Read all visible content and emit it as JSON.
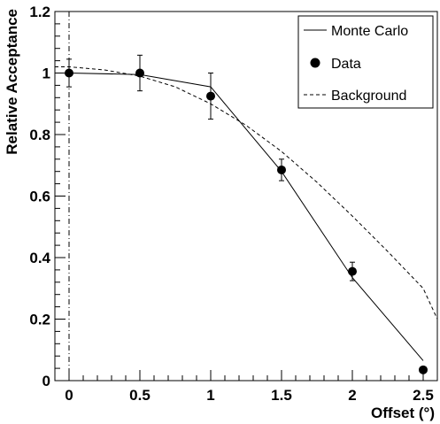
{
  "chart_data": {
    "type": "scatter",
    "title": "",
    "xlabel": "Offset (°)",
    "ylabel": "Relative Acceptance",
    "xlim": [
      -0.1,
      2.6
    ],
    "ylim": [
      0,
      1.2
    ],
    "x_ticks": [
      0,
      0.5,
      1,
      1.5,
      2,
      2.5
    ],
    "x_tick_labels": [
      "0",
      "0.5",
      "1",
      "1.5",
      "2",
      "2.5"
    ],
    "y_ticks": [
      0,
      0.2,
      0.4,
      0.6,
      0.8,
      1,
      1.2
    ],
    "y_tick_labels": [
      "0",
      "0.2",
      "0.4",
      "0.6",
      "0.8",
      "1",
      "1.2"
    ],
    "grid": false,
    "legend_position": "top-right",
    "series": [
      {
        "name": "Monte Carlo",
        "style": "solid-line",
        "x": [
          0,
          0.5,
          1,
          1.5,
          2,
          2.5
        ],
        "y": [
          1.0,
          0.995,
          0.955,
          0.68,
          0.335,
          0.065
        ]
      },
      {
        "name": "Data",
        "style": "points-with-error-bars",
        "x": [
          0,
          0.5,
          1,
          1.5,
          2,
          2.5
        ],
        "y": [
          1.0,
          1.0,
          0.925,
          0.685,
          0.355,
          0.035
        ],
        "yerr": [
          0.045,
          0.058,
          0.075,
          0.035,
          0.03,
          0.0
        ]
      },
      {
        "name": "Background",
        "style": "dashed-line",
        "x": [
          -0.1,
          0.0,
          0.25,
          0.5,
          0.75,
          1.0,
          1.25,
          1.5,
          1.75,
          2.0,
          2.25,
          2.5,
          2.6
        ],
        "y": [
          1.02,
          1.02,
          1.01,
          0.99,
          0.955,
          0.9,
          0.83,
          0.745,
          0.645,
          0.535,
          0.42,
          0.3,
          0.2
        ]
      }
    ],
    "vertical_reference_line": {
      "x": 0,
      "style": "dash-dot"
    },
    "colors": {
      "line": "#000000",
      "marker": "#000000",
      "background": "#ffffff"
    }
  }
}
